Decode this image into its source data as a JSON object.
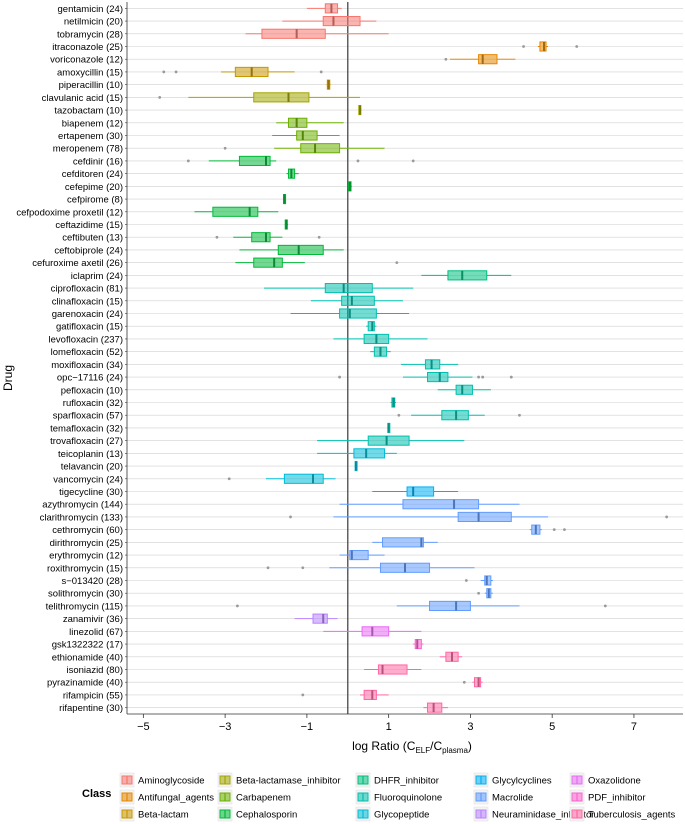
{
  "chart_data": {
    "type": "box",
    "orientation": "horizontal",
    "xlabel_main": "log  Ratio  (C",
    "xlabel_sub1": "ELF",
    "xlabel_mid": "/C",
    "xlabel_sub2": "plasma",
    "xlabel_end": ")",
    "ylabel": "Drug",
    "xlim": [
      -5.4,
      8.2
    ],
    "xticks": [
      -5,
      -3,
      -1,
      1,
      3,
      5,
      7
    ],
    "xtick_labels": [
      "−5",
      "−3",
      "−1",
      "1",
      "3",
      "5",
      "7"
    ],
    "reference_line_x": 0,
    "grid": true,
    "legend_title": "Class",
    "legend_position": "bottom",
    "classes": [
      {
        "name": "Aminoglycoside",
        "color": "#F8766D"
      },
      {
        "name": "Antifungal_agents",
        "color": "#E58700"
      },
      {
        "name": "Beta-lactam",
        "color": "#C99800"
      },
      {
        "name": "Beta-lactamase_inhibitor",
        "color": "#A3A500"
      },
      {
        "name": "Carbapenem",
        "color": "#6BB100"
      },
      {
        "name": "Cephalosporin",
        "color": "#00BA38"
      },
      {
        "name": "DHFR_inhibitor",
        "color": "#00BF7D"
      },
      {
        "name": "Fluoroquinolone",
        "color": "#00C0AF"
      },
      {
        "name": "Glycopeptide",
        "color": "#00BCD8"
      },
      {
        "name": "Glycylcyclines",
        "color": "#00B0F6"
      },
      {
        "name": "Macrolide",
        "color": "#619CFF"
      },
      {
        "name": "Neuraminidase_inhibitor",
        "color": "#B983FF"
      },
      {
        "name": "Oxazolidone",
        "color": "#E76BF3"
      },
      {
        "name": "PDF_inhibitor",
        "color": "#FD61D1"
      },
      {
        "name": "Tuberculosis_agents",
        "color": "#FF67A4"
      }
    ],
    "drugs": [
      {
        "label": "gentamicin (24)",
        "cls": 0,
        "wlo": -1.0,
        "q1": -0.55,
        "med": -0.4,
        "q3": -0.25,
        "whi": -0.15,
        "out": []
      },
      {
        "label": "netilmicin (20)",
        "cls": 0,
        "wlo": -1.6,
        "q1": -0.6,
        "med": -0.35,
        "q3": 0.3,
        "whi": 0.7,
        "out": []
      },
      {
        "label": "tobramycin (28)",
        "cls": 0,
        "wlo": -2.5,
        "q1": -2.1,
        "med": -1.25,
        "q3": -0.55,
        "whi": 1.0,
        "out": []
      },
      {
        "label": "itraconazole (25)",
        "cls": 1,
        "wlo": 4.65,
        "q1": 4.7,
        "med": 4.8,
        "q3": 4.85,
        "whi": 4.9,
        "out": [
          4.3,
          5.6
        ]
      },
      {
        "label": "voriconazole (12)",
        "cls": 1,
        "wlo": 2.5,
        "q1": 3.2,
        "med": 3.3,
        "q3": 3.65,
        "whi": 4.1,
        "out": [
          2.4
        ]
      },
      {
        "label": "amoxycillin (15)",
        "cls": 2,
        "wlo": -3.1,
        "q1": -2.75,
        "med": -2.35,
        "q3": -1.95,
        "whi": -1.3,
        "out": [
          -4.5,
          -4.2,
          -0.65
        ]
      },
      {
        "label": "piperacillin (10)",
        "cls": 2,
        "wlo": -0.52,
        "q1": -0.5,
        "med": -0.47,
        "q3": -0.44,
        "whi": -0.42,
        "out": []
      },
      {
        "label": "clavulanic acid (15)",
        "cls": 3,
        "wlo": -3.9,
        "q1": -2.3,
        "med": -1.45,
        "q3": -0.95,
        "whi": 0.3,
        "out": [
          -4.6
        ]
      },
      {
        "label": "tazobactam (10)",
        "cls": 3,
        "wlo": 0.26,
        "q1": 0.27,
        "med": 0.3,
        "q3": 0.32,
        "whi": 0.34,
        "out": []
      },
      {
        "label": "biapenem (12)",
        "cls": 4,
        "wlo": -1.75,
        "q1": -1.45,
        "med": -1.25,
        "q3": -1.0,
        "whi": -0.1,
        "out": []
      },
      {
        "label": "ertapenem (30)",
        "cls": 4,
        "wlo": -1.85,
        "q1": -1.25,
        "med": -1.1,
        "q3": -0.75,
        "whi": -0.2,
        "out": []
      },
      {
        "label": "meropenem (78)",
        "cls": 4,
        "wlo": -1.8,
        "q1": -1.15,
        "med": -0.8,
        "q3": -0.2,
        "whi": 0.9,
        "out": [
          -3.0
        ]
      },
      {
        "label": "cefdinir (16)",
        "cls": 5,
        "wlo": -3.4,
        "q1": -2.65,
        "med": -2.0,
        "q3": -1.9,
        "whi": -1.75,
        "out": [
          -3.9,
          0.25,
          1.6
        ]
      },
      {
        "label": "cefditoren (24)",
        "cls": 5,
        "wlo": -1.5,
        "q1": -1.45,
        "med": -1.38,
        "q3": -1.3,
        "whi": -1.2,
        "out": []
      },
      {
        "label": "cefepime (20)",
        "cls": 5,
        "wlo": 0.0,
        "q1": 0.02,
        "med": 0.05,
        "q3": 0.08,
        "whi": 0.1,
        "out": []
      },
      {
        "label": "cefpirome (8)",
        "cls": 5,
        "wlo": -1.58,
        "q1": -1.57,
        "med": -1.55,
        "q3": -1.53,
        "whi": -1.52,
        "out": []
      },
      {
        "label": "cefpodoxime proxetil (12)",
        "cls": 5,
        "wlo": -3.75,
        "q1": -3.3,
        "med": -2.4,
        "q3": -2.2,
        "whi": -1.7,
        "out": []
      },
      {
        "label": "ceftazidime (15)",
        "cls": 5,
        "wlo": -1.54,
        "q1": -1.53,
        "med": -1.5,
        "q3": -1.48,
        "whi": -1.46,
        "out": []
      },
      {
        "label": "ceftibuten (13)",
        "cls": 5,
        "wlo": -2.8,
        "q1": -2.35,
        "med": -2.0,
        "q3": -1.9,
        "whi": -1.6,
        "out": [
          -3.2,
          -0.7
        ]
      },
      {
        "label": "ceftobiprole (24)",
        "cls": 5,
        "wlo": -2.65,
        "q1": -1.7,
        "med": -1.2,
        "q3": -0.6,
        "whi": -0.1,
        "out": []
      },
      {
        "label": "cefuroxime axetil (26)",
        "cls": 5,
        "wlo": -2.75,
        "q1": -2.3,
        "med": -1.8,
        "q3": -1.6,
        "whi": -1.05,
        "out": [
          1.2
        ]
      },
      {
        "label": "iclaprim (24)",
        "cls": 6,
        "wlo": 1.8,
        "q1": 2.45,
        "med": 2.8,
        "q3": 3.4,
        "whi": 4.0,
        "out": []
      },
      {
        "label": "ciprofloxacin (81)",
        "cls": 7,
        "wlo": -2.05,
        "q1": -0.55,
        "med": -0.1,
        "q3": 0.6,
        "whi": 1.6,
        "out": []
      },
      {
        "label": "clinafloxacin (15)",
        "cls": 7,
        "wlo": -0.9,
        "q1": -0.15,
        "med": 0.1,
        "q3": 0.65,
        "whi": 1.35,
        "out": []
      },
      {
        "label": "garenoxacin (24)",
        "cls": 7,
        "wlo": -1.4,
        "q1": -0.2,
        "med": 0.05,
        "q3": 0.7,
        "whi": 1.5,
        "out": []
      },
      {
        "label": "gatifloxacin (15)",
        "cls": 7,
        "wlo": 0.45,
        "q1": 0.5,
        "med": 0.6,
        "q3": 0.65,
        "whi": 0.7,
        "out": []
      },
      {
        "label": "levofloxacin (237)",
        "cls": 7,
        "wlo": -0.35,
        "q1": 0.4,
        "med": 0.7,
        "q3": 1.0,
        "whi": 1.95,
        "out": []
      },
      {
        "label": "lomefloxacin (52)",
        "cls": 7,
        "wlo": 0.55,
        "q1": 0.65,
        "med": 0.8,
        "q3": 0.95,
        "whi": 1.05,
        "out": []
      },
      {
        "label": "moxifloxacin (34)",
        "cls": 7,
        "wlo": 1.3,
        "q1": 1.9,
        "med": 2.05,
        "q3": 2.25,
        "whi": 2.7,
        "out": []
      },
      {
        "label": "opc−17116 (24)",
        "cls": 7,
        "wlo": 1.35,
        "q1": 1.95,
        "med": 2.25,
        "q3": 2.45,
        "whi": 3.05,
        "out": [
          -0.2,
          3.2,
          3.3,
          4.0
        ]
      },
      {
        "label": "pefloxacin (10)",
        "cls": 7,
        "wlo": 2.2,
        "q1": 2.65,
        "med": 2.8,
        "q3": 3.05,
        "whi": 3.5,
        "out": []
      },
      {
        "label": "rufloxacin (32)",
        "cls": 7,
        "wlo": 1.05,
        "q1": 1.08,
        "med": 1.12,
        "q3": 1.15,
        "whi": 1.18,
        "out": []
      },
      {
        "label": "sparfloxacin (57)",
        "cls": 7,
        "wlo": 1.55,
        "q1": 2.3,
        "med": 2.65,
        "q3": 2.95,
        "whi": 3.35,
        "out": [
          1.25,
          4.2
        ]
      },
      {
        "label": "temafloxacin (32)",
        "cls": 7,
        "wlo": 0.97,
        "q1": 0.98,
        "med": 1.0,
        "q3": 1.02,
        "whi": 1.03,
        "out": []
      },
      {
        "label": "trovafloxacin (27)",
        "cls": 7,
        "wlo": -0.75,
        "q1": 0.5,
        "med": 0.95,
        "q3": 1.5,
        "whi": 2.85,
        "out": []
      },
      {
        "label": "teicoplanin (13)",
        "cls": 8,
        "wlo": -0.75,
        "q1": 0.15,
        "med": 0.45,
        "q3": 0.9,
        "whi": 1.2,
        "out": []
      },
      {
        "label": "telavancin (20)",
        "cls": 8,
        "wlo": 0.17,
        "q1": 0.18,
        "med": 0.2,
        "q3": 0.22,
        "whi": 0.24,
        "out": []
      },
      {
        "label": "vancomycin (24)",
        "cls": 8,
        "wlo": -2.0,
        "q1": -1.55,
        "med": -0.85,
        "q3": -0.6,
        "whi": -0.3,
        "out": [
          -2.9
        ]
      },
      {
        "label": "tigecycline (30)",
        "cls": 9,
        "wlo": 0.6,
        "q1": 1.45,
        "med": 1.6,
        "q3": 2.1,
        "whi": 2.7,
        "out": []
      },
      {
        "label": "azythromycin (144)",
        "cls": 10,
        "wlo": -0.2,
        "q1": 1.35,
        "med": 2.6,
        "q3": 3.2,
        "whi": 4.2,
        "out": []
      },
      {
        "label": "clarithromycin (133)",
        "cls": 10,
        "wlo": -0.35,
        "q1": 2.7,
        "med": 3.2,
        "q3": 4.0,
        "whi": 4.9,
        "out": [
          -1.4,
          7.8
        ]
      },
      {
        "label": "cethromycin (60)",
        "cls": 10,
        "wlo": 4.45,
        "q1": 4.5,
        "med": 4.6,
        "q3": 4.7,
        "whi": 4.75,
        "out": [
          5.05,
          5.3
        ]
      },
      {
        "label": "dirithromycin (25)",
        "cls": 10,
        "wlo": 0.6,
        "q1": 0.85,
        "med": 1.8,
        "q3": 1.85,
        "whi": 2.2,
        "out": []
      },
      {
        "label": "erythromycin (12)",
        "cls": 10,
        "wlo": -0.2,
        "q1": 0.05,
        "med": 0.1,
        "q3": 0.5,
        "whi": 0.9,
        "out": []
      },
      {
        "label": "roxithromycin (15)",
        "cls": 10,
        "wlo": -0.45,
        "q1": 0.8,
        "med": 1.4,
        "q3": 2.0,
        "whi": 3.1,
        "out": [
          -1.95,
          -1.1
        ]
      },
      {
        "label": "s−013420 (28)",
        "cls": 10,
        "wlo": 3.25,
        "q1": 3.35,
        "med": 3.4,
        "q3": 3.5,
        "whi": 3.55,
        "out": [
          2.9
        ]
      },
      {
        "label": "solithromycin (30)",
        "cls": 10,
        "wlo": 3.35,
        "q1": 3.4,
        "med": 3.45,
        "q3": 3.5,
        "whi": 3.55,
        "out": [
          3.2
        ]
      },
      {
        "label": "telithromycin (115)",
        "cls": 10,
        "wlo": 1.2,
        "q1": 2.0,
        "med": 2.65,
        "q3": 3.0,
        "whi": 4.2,
        "out": [
          -2.7,
          6.3
        ]
      },
      {
        "label": "zanamivir (36)",
        "cls": 11,
        "wlo": -1.3,
        "q1": -0.85,
        "med": -0.6,
        "q3": -0.5,
        "whi": -0.25,
        "out": []
      },
      {
        "label": "linezolid (67)",
        "cls": 12,
        "wlo": -0.6,
        "q1": 0.35,
        "med": 0.6,
        "q3": 1.0,
        "whi": 1.8,
        "out": []
      },
      {
        "label": "gsk1322322 (17)",
        "cls": 13,
        "wlo": 1.6,
        "q1": 1.65,
        "med": 1.7,
        "q3": 1.8,
        "whi": 1.85,
        "out": []
      },
      {
        "label": "ethionamide (40)",
        "cls": 14,
        "wlo": 2.25,
        "q1": 2.4,
        "med": 2.55,
        "q3": 2.7,
        "whi": 2.8,
        "out": []
      },
      {
        "label": "isoniazid (80)",
        "cls": 14,
        "wlo": 0.4,
        "q1": 0.75,
        "med": 0.85,
        "q3": 1.45,
        "whi": 1.8,
        "out": []
      },
      {
        "label": "pyrazinamide (40)",
        "cls": 14,
        "wlo": 3.05,
        "q1": 3.1,
        "med": 3.2,
        "q3": 3.25,
        "whi": 3.3,
        "out": [
          2.85
        ]
      },
      {
        "label": "rifampicin (55)",
        "cls": 14,
        "wlo": 0.3,
        "q1": 0.4,
        "med": 0.6,
        "q3": 0.7,
        "whi": 1.0,
        "out": [
          -1.1
        ]
      },
      {
        "label": "rifapentine (30)",
        "cls": 14,
        "wlo": 1.85,
        "q1": 1.95,
        "med": 2.1,
        "q3": 2.3,
        "whi": 2.45,
        "out": []
      }
    ]
  }
}
